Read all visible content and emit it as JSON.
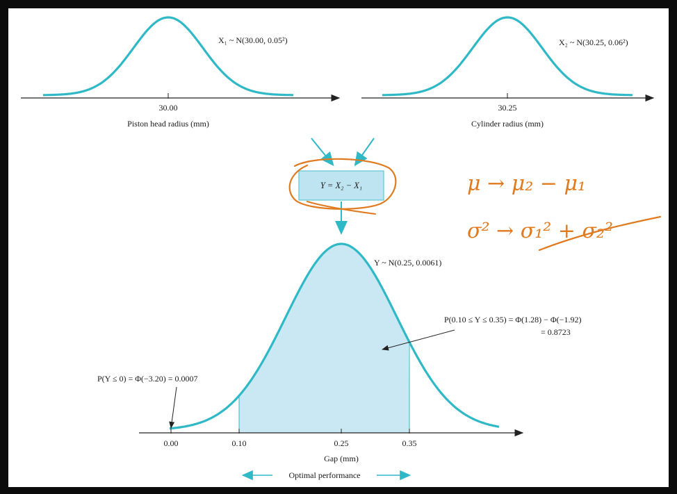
{
  "top_left": {
    "label_main": "X₁ ~ N(30.00, 0.05²)",
    "tick": "30.00",
    "axis_label": "Piston head radius (mm)"
  },
  "top_right": {
    "label_main": "X₂ ~ N(30.25, 0.06²)",
    "tick": "30.25",
    "axis_label": "Cylinder radius (mm)"
  },
  "combine_box": {
    "text": "Y = X₂ − X₁"
  },
  "bottom": {
    "label_main": "Y ~ N(0.25, 0.0061)",
    "annotation_area_line1": "P(0.10 ≤ Y ≤ 0.35) = Φ(1.28) − Φ(−1.92)",
    "annotation_area_line2": "= 0.8723",
    "annotation_tail": "P(Y ≤ 0) = Φ(−3.20) = 0.0007",
    "ticks": [
      "0.00",
      "0.10",
      "0.25",
      "0.35"
    ],
    "axis_label": "Gap (mm)",
    "range_label": "Optimal performance"
  },
  "handwriting": {
    "line1": "μ → μ₂ − μ₁",
    "line2": "σ² → σ₁² + σ₂²"
  },
  "colors": {
    "curve": "#2fb8c6",
    "fill": "#c9e8f3",
    "ink": "#e07a1f",
    "arrow": "#2fb8c6"
  }
}
